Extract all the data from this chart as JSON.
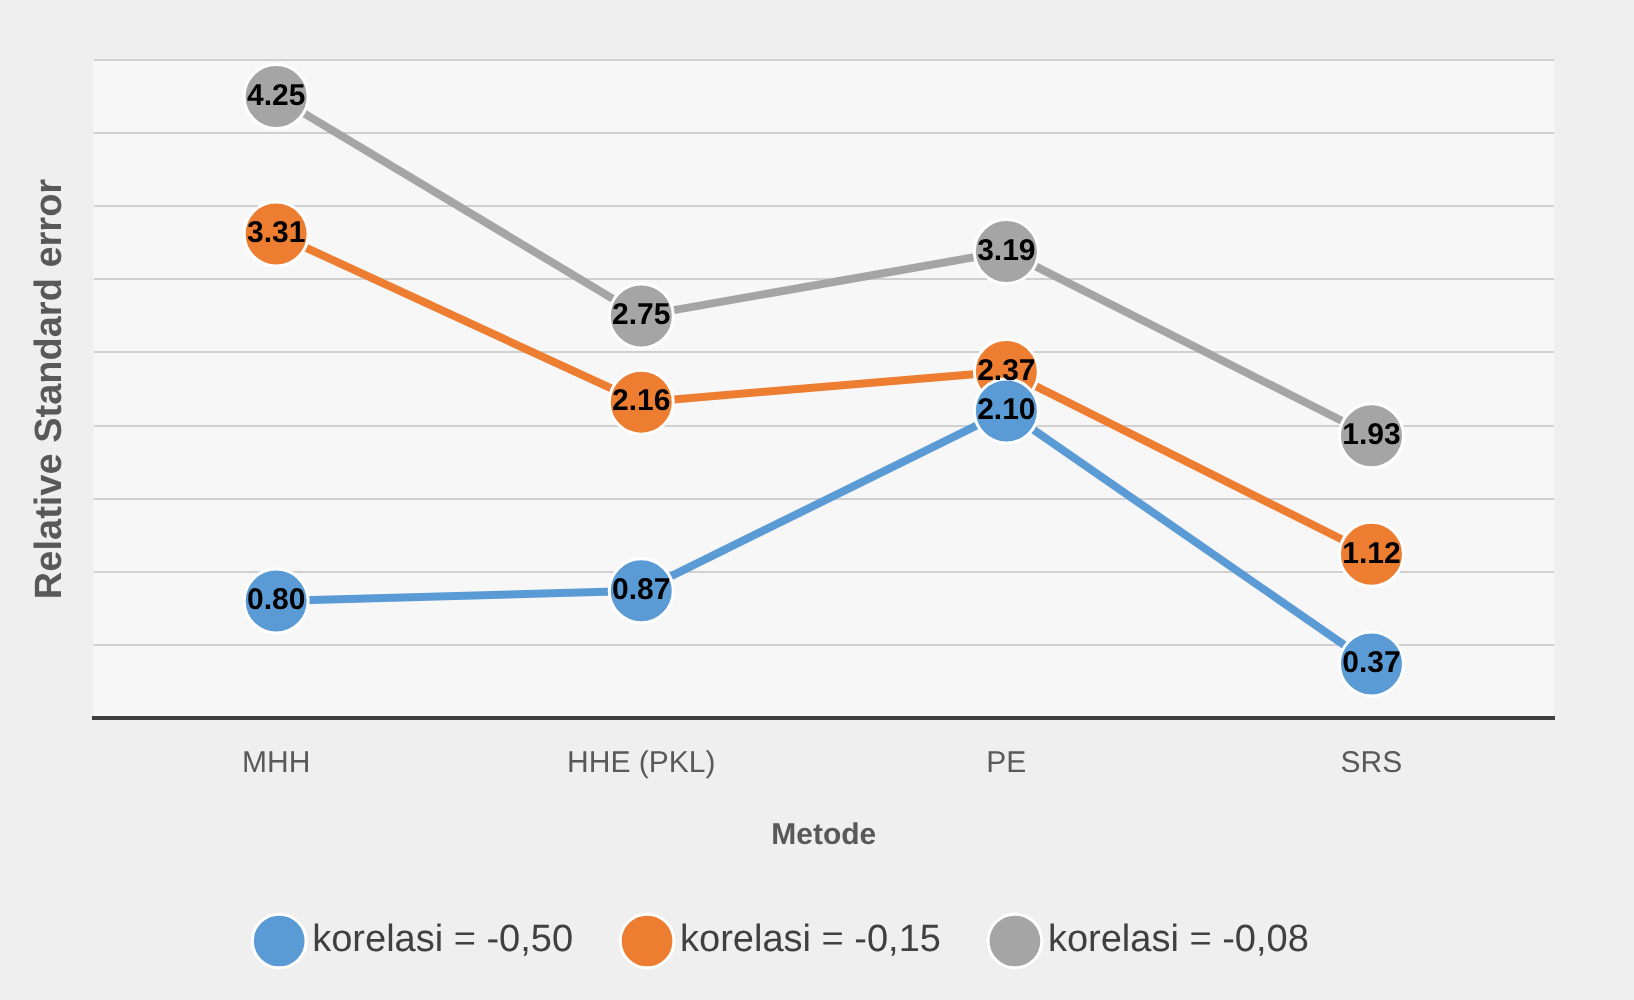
{
  "chart_data": {
    "type": "line",
    "xlabel": "Metode",
    "ylabel": "Relative Standard error",
    "categories": [
      "MHH",
      "HHE (PKL)",
      "PE",
      "SRS"
    ],
    "series": [
      {
        "name": "korelasi = -0,50",
        "color": "#5b9bd5",
        "values": [
          0.8,
          0.87,
          2.1,
          0.37
        ],
        "value_labels": [
          "0.80",
          "0.87",
          "2.10",
          "0.37"
        ]
      },
      {
        "name": "korelasi = -0,15",
        "color": "#ed7d31",
        "values": [
          3.31,
          2.16,
          2.37,
          1.12
        ],
        "value_labels": [
          "3.31",
          "2.16",
          "2.37",
          "1.12"
        ]
      },
      {
        "name": "korelasi = -0,08",
        "color": "#a5a5a5",
        "values": [
          4.25,
          2.75,
          3.19,
          1.93
        ],
        "value_labels": [
          "4.25",
          "2.75",
          "3.19",
          "1.93"
        ]
      }
    ],
    "ylim": [
      0,
      4.5
    ],
    "yticks": [
      0,
      {
        "value": 0.5,
        "label": null
      },
      {
        "value": 1,
        "label": null
      },
      {
        "value": 1.5,
        "label": null
      },
      {
        "value": 2,
        "label": null
      },
      {
        "value": 2.5,
        "label": null
      },
      {
        "value": 3,
        "label": null
      },
      {
        "value": 3.5,
        "label": null
      },
      {
        "value": 4,
        "label": null
      },
      {
        "value": 4.5,
        "label": null
      }
    ],
    "tick_labels": "x",
    "grid": "y",
    "legend": "bottom",
    "marker": "circle",
    "line_style": "solid"
  }
}
